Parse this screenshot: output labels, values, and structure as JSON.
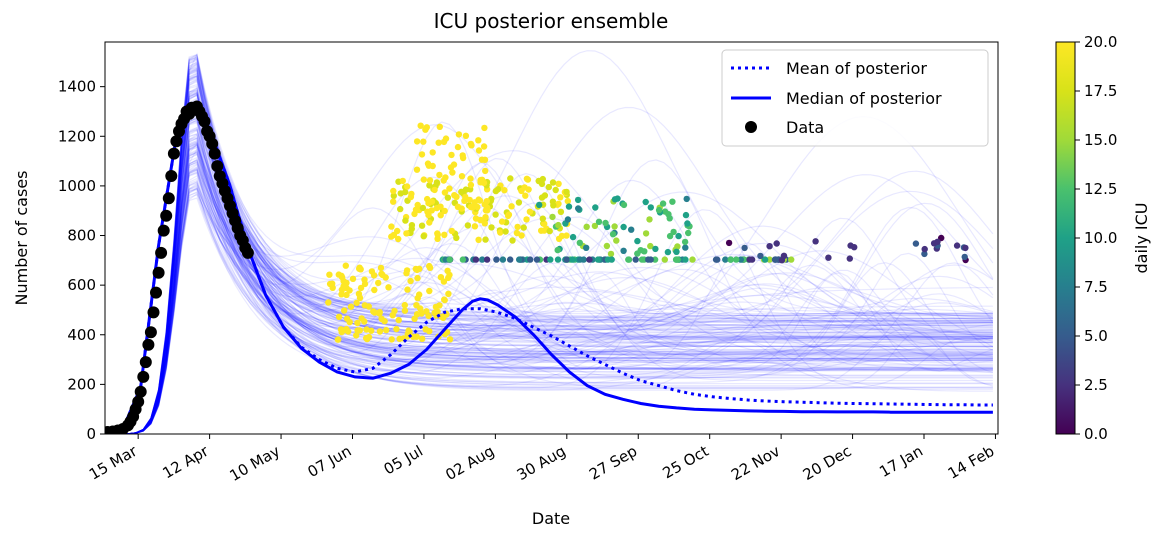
{
  "chart_data": {
    "type": "line",
    "title": "ICU posterior ensemble",
    "xlabel": "Date",
    "ylabel": "Number of cases",
    "x_ticks": [
      "15 Mar",
      "12 Apr",
      "10 May",
      "07 Jun",
      "05 Jul",
      "02 Aug",
      "30 Aug",
      "27 Sep",
      "25 Oct",
      "22 Nov",
      "20 Dec",
      "17 Jan",
      "14 Feb"
    ],
    "x_range": [
      "2020-03-02",
      "2021-02-15"
    ],
    "ylim": [
      0,
      1580
    ],
    "y_ticks": [
      0,
      200,
      400,
      600,
      800,
      1000,
      1200,
      1400
    ],
    "grid": false,
    "legend_position": "top-right",
    "legend": [
      {
        "label": "Mean of posterior",
        "style": "dotted",
        "color": "#0000ff"
      },
      {
        "label": "Median of posterior",
        "style": "solid",
        "color": "#0000ff"
      },
      {
        "label": "Data",
        "style": "marker",
        "color": "#000000"
      }
    ],
    "colorbar": {
      "label": "daily ICU",
      "range": [
        0,
        20
      ],
      "ticks": [
        "0.0",
        "2.5",
        "5.0",
        "7.5",
        "10.0",
        "12.5",
        "15.0",
        "17.5",
        "20.0"
      ],
      "colormap": "viridis"
    },
    "series": [
      {
        "name": "Mean of posterior",
        "style": "dotted",
        "color": "#0000ff",
        "points": [
          [
            0,
            5
          ],
          [
            7,
            20
          ],
          [
            14,
            190
          ],
          [
            21,
            760
          ],
          [
            28,
            1200
          ],
          [
            32,
            1300
          ],
          [
            35,
            1310
          ],
          [
            42,
            1200
          ],
          [
            49,
            1000
          ],
          [
            56,
            750
          ],
          [
            63,
            560
          ],
          [
            70,
            430
          ],
          [
            77,
            350
          ],
          [
            84,
            300
          ],
          [
            91,
            265
          ],
          [
            98,
            250
          ],
          [
            105,
            265
          ],
          [
            112,
            320
          ],
          [
            119,
            390
          ],
          [
            126,
            450
          ],
          [
            133,
            490
          ],
          [
            140,
            505
          ],
          [
            147,
            505
          ],
          [
            154,
            490
          ],
          [
            161,
            465
          ],
          [
            168,
            430
          ],
          [
            175,
            395
          ],
          [
            182,
            355
          ],
          [
            189,
            315
          ],
          [
            196,
            280
          ],
          [
            203,
            245
          ],
          [
            210,
            215
          ],
          [
            217,
            195
          ],
          [
            224,
            175
          ],
          [
            231,
            160
          ],
          [
            238,
            150
          ],
          [
            245,
            143
          ],
          [
            252,
            137
          ],
          [
            259,
            133
          ],
          [
            266,
            130
          ],
          [
            273,
            128
          ],
          [
            280,
            126
          ],
          [
            287,
            124
          ],
          [
            294,
            123
          ],
          [
            301,
            122
          ],
          [
            308,
            121
          ],
          [
            315,
            120
          ],
          [
            322,
            119
          ],
          [
            329,
            118
          ],
          [
            336,
            118
          ],
          [
            343,
            117
          ],
          [
            348,
            117
          ]
        ]
      },
      {
        "name": "Median of posterior",
        "style": "solid",
        "color": "#0000ff",
        "points": [
          [
            0,
            5
          ],
          [
            7,
            20
          ],
          [
            14,
            190
          ],
          [
            21,
            760
          ],
          [
            28,
            1200
          ],
          [
            32,
            1300
          ],
          [
            35,
            1310
          ],
          [
            42,
            1200
          ],
          [
            49,
            1000
          ],
          [
            56,
            750
          ],
          [
            63,
            560
          ],
          [
            70,
            430
          ],
          [
            77,
            345
          ],
          [
            84,
            290
          ],
          [
            91,
            250
          ],
          [
            98,
            230
          ],
          [
            105,
            225
          ],
          [
            112,
            245
          ],
          [
            119,
            280
          ],
          [
            126,
            340
          ],
          [
            133,
            420
          ],
          [
            140,
            500
          ],
          [
            144,
            535
          ],
          [
            147,
            545
          ],
          [
            150,
            540
          ],
          [
            154,
            520
          ],
          [
            161,
            470
          ],
          [
            168,
            400
          ],
          [
            175,
            320
          ],
          [
            182,
            250
          ],
          [
            189,
            195
          ],
          [
            196,
            160
          ],
          [
            203,
            140
          ],
          [
            210,
            123
          ],
          [
            217,
            112
          ],
          [
            224,
            105
          ],
          [
            231,
            100
          ],
          [
            238,
            97
          ],
          [
            245,
            95
          ],
          [
            252,
            93
          ],
          [
            259,
            92
          ],
          [
            266,
            91
          ],
          [
            273,
            90
          ],
          [
            280,
            90
          ],
          [
            287,
            89
          ],
          [
            294,
            89
          ],
          [
            301,
            89
          ],
          [
            308,
            88
          ],
          [
            315,
            88
          ],
          [
            322,
            88
          ],
          [
            329,
            88
          ],
          [
            336,
            88
          ],
          [
            343,
            88
          ],
          [
            348,
            88
          ]
        ]
      }
    ],
    "data_points": [
      [
        1,
        8
      ],
      [
        3,
        10
      ],
      [
        5,
        14
      ],
      [
        7,
        20
      ],
      [
        9,
        35
      ],
      [
        10,
        50
      ],
      [
        11,
        70
      ],
      [
        12,
        100
      ],
      [
        13,
        130
      ],
      [
        14,
        170
      ],
      [
        15,
        230
      ],
      [
        16,
        290
      ],
      [
        17,
        360
      ],
      [
        18,
        410
      ],
      [
        19,
        490
      ],
      [
        20,
        570
      ],
      [
        21,
        650
      ],
      [
        22,
        730
      ],
      [
        23,
        820
      ],
      [
        24,
        880
      ],
      [
        25,
        950
      ],
      [
        26,
        1040
      ],
      [
        27,
        1130
      ],
      [
        28,
        1180
      ],
      [
        29,
        1220
      ],
      [
        30,
        1250
      ],
      [
        31,
        1270
      ],
      [
        32,
        1300
      ],
      [
        33,
        1290
      ],
      [
        34,
        1315
      ],
      [
        35,
        1310
      ],
      [
        36,
        1320
      ],
      [
        37,
        1300
      ],
      [
        38,
        1280
      ],
      [
        39,
        1260
      ],
      [
        40,
        1220
      ],
      [
        41,
        1200
      ],
      [
        42,
        1170
      ],
      [
        43,
        1130
      ],
      [
        44,
        1080
      ],
      [
        45,
        1040
      ],
      [
        46,
        1010
      ],
      [
        47,
        980
      ],
      [
        48,
        950
      ],
      [
        49,
        920
      ],
      [
        50,
        890
      ],
      [
        51,
        860
      ],
      [
        52,
        830
      ],
      [
        53,
        800
      ],
      [
        54,
        780
      ],
      [
        55,
        750
      ],
      [
        56,
        730
      ]
    ]
  }
}
